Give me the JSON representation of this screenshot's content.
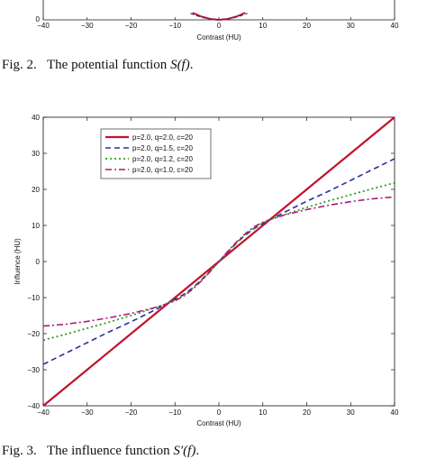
{
  "top_fragment": {
    "xticks": [
      "−40",
      "−30",
      "−20",
      "−10",
      "0",
      "10",
      "20",
      "30",
      "40"
    ],
    "ytick": "0",
    "xlabel": "Contrast (HU)"
  },
  "caption2": {
    "label": "Fig. 2.",
    "text": "The potential function ",
    "math": "S(f)",
    "end": "."
  },
  "caption3": {
    "label": "Fig. 3.",
    "text": "The influence function ",
    "math": "S′(f)",
    "end": "."
  },
  "chart_data": [
    {
      "type": "line",
      "title": "",
      "xlabel": "Contrast (HU)",
      "ylabel": "",
      "xlim": [
        -40,
        40
      ],
      "xticks": [
        -40,
        -30,
        -20,
        -10,
        0,
        10,
        20,
        30,
        40
      ],
      "note": "partially visible potential function S(f); only the bottom of the U-shaped curves (minimum at 0, value 0) is shown",
      "series": [
        {
          "x": [
            -6,
            -4,
            -2,
            0,
            2,
            4,
            6
          ],
          "y": [
            3,
            1.4,
            0.4,
            0,
            0.4,
            1.4,
            3
          ],
          "color": "#c4122f"
        }
      ]
    },
    {
      "type": "line",
      "title": "",
      "xlabel": "Contrast (HU)",
      "ylabel": "Influence (HU)",
      "xlim": [
        -40,
        40
      ],
      "ylim": [
        -40,
        40
      ],
      "xticks": [
        -40,
        -30,
        -20,
        -10,
        0,
        10,
        20,
        30,
        40
      ],
      "yticks": [
        -40,
        -30,
        -20,
        -10,
        0,
        10,
        20,
        30,
        40
      ],
      "grid": false,
      "legend_position": "top-left",
      "series": [
        {
          "name": "p=2.0, q=2.0, c=20",
          "color": "#c4122f",
          "dash": "solid",
          "width": 2.2,
          "x": [
            -40,
            -30,
            -20,
            -10,
            0,
            10,
            20,
            30,
            40
          ],
          "y": [
            -40,
            -30,
            -20,
            -10,
            0,
            10,
            20,
            30,
            40
          ]
        },
        {
          "name": "p=2.0, q=1.5, c=20",
          "color": "#2b2fa0",
          "dash": "6,4",
          "width": 1.6,
          "x": [
            -40,
            -35,
            -30,
            -25,
            -20,
            -15,
            -12,
            -10,
            -8,
            -6,
            -4,
            -2,
            0,
            2,
            4,
            6,
            8,
            10,
            12,
            15,
            20,
            25,
            30,
            35,
            40
          ],
          "y": [
            -28.5,
            -25.5,
            -22.5,
            -19.5,
            -16.7,
            -13.7,
            -11.8,
            -10.5,
            -9.1,
            -7.3,
            -5.1,
            -2.6,
            0,
            2.6,
            5.1,
            7.3,
            9.1,
            10.5,
            11.8,
            13.7,
            16.7,
            19.5,
            22.5,
            25.5,
            28.5
          ]
        },
        {
          "name": "p=2.0, q=1.2, c=20",
          "color": "#2e9a22",
          "dash": "2,3",
          "width": 1.8,
          "x": [
            -40,
            -35,
            -30,
            -25,
            -20,
            -15,
            -12,
            -10,
            -8,
            -6,
            -4,
            -2,
            0,
            2,
            4,
            6,
            8,
            10,
            12,
            15,
            20,
            25,
            30,
            35,
            40
          ],
          "y": [
            -21.8,
            -20.2,
            -18.5,
            -16.8,
            -15.0,
            -13.0,
            -11.8,
            -10.7,
            -9.3,
            -7.4,
            -5.2,
            -2.7,
            0,
            2.7,
            5.2,
            7.4,
            9.3,
            10.7,
            11.8,
            13.0,
            15.0,
            16.8,
            18.5,
            20.2,
            21.8
          ]
        },
        {
          "name": "p=2.0, q=1.0, c=20",
          "color": "#b0187a",
          "dash": "7,3,2,3",
          "width": 1.6,
          "x": [
            -40,
            -35,
            -30,
            -25,
            -20,
            -15,
            -12,
            -10,
            -8,
            -6,
            -4,
            -2,
            0,
            2,
            4,
            6,
            8,
            10,
            12,
            15,
            20,
            25,
            30,
            35,
            40
          ],
          "y": [
            -17.9,
            -17.4,
            -16.6,
            -15.6,
            -14.4,
            -12.9,
            -11.8,
            -10.9,
            -9.6,
            -7.7,
            -5.4,
            -2.8,
            0,
            2.8,
            5.4,
            7.7,
            9.6,
            10.9,
            11.8,
            12.9,
            14.4,
            15.6,
            16.6,
            17.4,
            17.9
          ]
        }
      ]
    }
  ]
}
